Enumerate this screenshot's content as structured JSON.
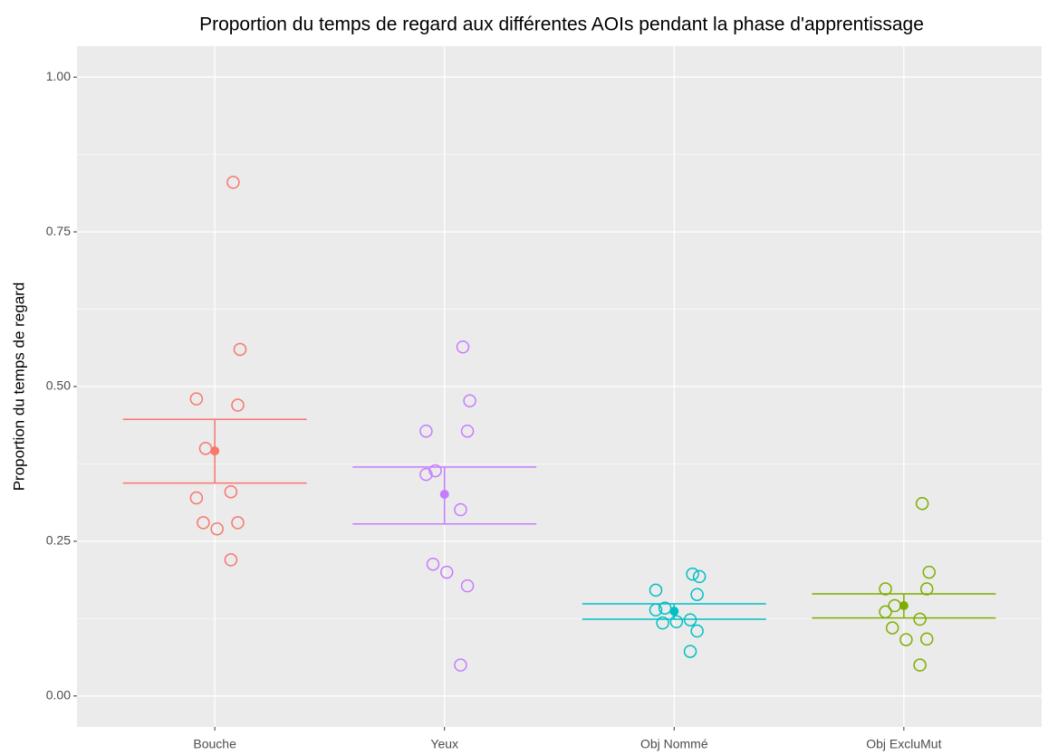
{
  "chart_data": {
    "type": "strip",
    "title": "Proportion du temps de regard aux différentes AOIs pendant la phase d'apprentissage",
    "y_label": "Proportion du temps de regard",
    "ylim": [
      -0.05,
      1.05
    ],
    "yticks": [
      {
        "value": 0,
        "label": "0.00"
      },
      {
        "value": 0.25,
        "label": "0.25"
      },
      {
        "value": 0.5,
        "label": "0.50"
      },
      {
        "value": 0.75,
        "label": "0.75"
      },
      {
        "value": 1,
        "label": "1.00"
      }
    ],
    "yminorticks": [
      0.125,
      0.375,
      0.625,
      0.875
    ],
    "grid": true,
    "groups": [
      {
        "name": "Bouche",
        "color": "#f8766d",
        "values": [
          0.83,
          0.56,
          0.48,
          0.47,
          0.4,
          0.32,
          0.33,
          0.28,
          0.27,
          0.28,
          0.22
        ],
        "mean": 0.396,
        "lower": 0.344,
        "upper": 0.447
      },
      {
        "name": "Yeux",
        "color": "#c77cff",
        "values": [
          0.564,
          0.477,
          0.428,
          0.428,
          0.364,
          0.358,
          0.301,
          0.213,
          0.2,
          0.178,
          0.05
        ],
        "mean": 0.326,
        "lower": 0.278,
        "upper": 0.37
      },
      {
        "name": "Obj Nommé",
        "color": "#00bfc4",
        "values": [
          0.197,
          0.193,
          0.171,
          0.164,
          0.142,
          0.139,
          0.123,
          0.118,
          0.12,
          0.105,
          0.072
        ],
        "mean": 0.137,
        "lower": 0.124,
        "upper": 0.149
      },
      {
        "name": "Obj ExcluMut",
        "color": "#7cae00",
        "values": [
          0.311,
          0.2,
          0.173,
          0.173,
          0.146,
          0.136,
          0.124,
          0.11,
          0.091,
          0.092,
          0.05
        ],
        "mean": 0.146,
        "lower": 0.126,
        "upper": 0.165
      }
    ]
  }
}
